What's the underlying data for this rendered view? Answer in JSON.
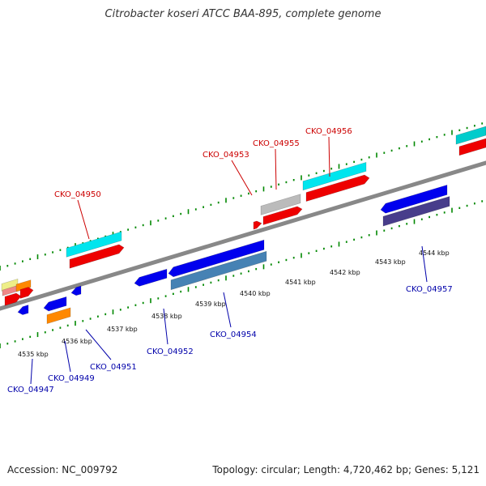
{
  "title": "Citrobacter koseri ATCC BAA-895, complete genome",
  "footer": {
    "accession": "Accession: NC_009792",
    "summary": "Topology: circular; Length: 4,720,462 bp; Genes: 5,121"
  },
  "scale_labels": [
    "4535 kbp",
    "4536 kbp",
    "4537 kbp",
    "4538 kbp",
    "4539 kbp",
    "4540 kbp",
    "4541 kbp",
    "4542 kbp",
    "4543 kbp",
    "4544 kbp"
  ],
  "gene_labels_top": [
    "CKO_04950",
    "CKO_04953",
    "CKO_04955",
    "CKO_04956"
  ],
  "gene_labels_bottom": [
    "CKO_04947",
    "CKO_04949",
    "CKO_04951",
    "CKO_04952",
    "CKO_04954",
    "CKO_04957"
  ],
  "colors": {
    "forward_cds": "#ee0000",
    "forward_feature": "#00e5ee",
    "reverse_cds": "#0000ee",
    "reverse_feature": "#4682b4",
    "backbone": "#888888",
    "tick": "#008800"
  }
}
